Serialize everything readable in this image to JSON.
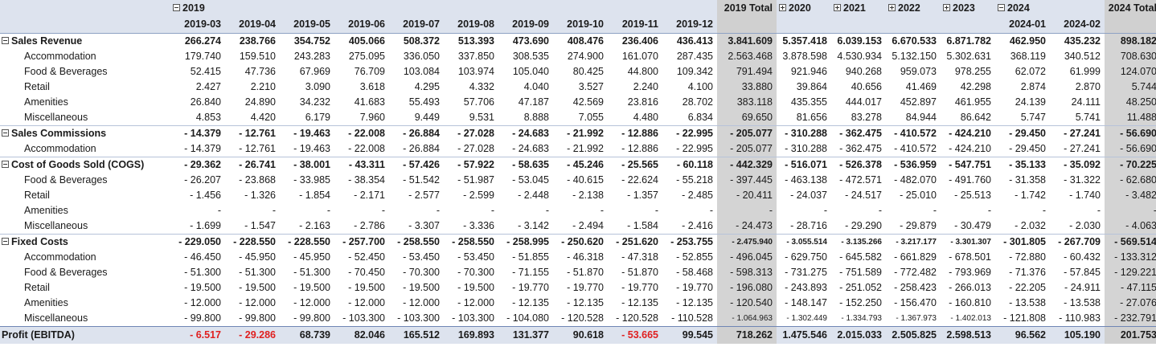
{
  "header": {
    "year_2019": "2019",
    "months_2019": [
      "2019-03",
      "2019-04",
      "2019-05",
      "2019-06",
      "2019-07",
      "2019-08",
      "2019-09",
      "2019-10",
      "2019-11",
      "2019-12"
    ],
    "total_2019": "2019 Total",
    "year_2020": "2020",
    "year_2021": "2021",
    "year_2022": "2022",
    "year_2023": "2023",
    "year_2024": "2024",
    "months_2024": [
      "2024-01",
      "2024-02"
    ],
    "total_2024": "2024 Total"
  },
  "rows": [
    {
      "label": "Sales Revenue",
      "cells": [
        "266.274",
        "238.766",
        "354.752",
        "405.066",
        "508.372",
        "513.393",
        "473.690",
        "408.476",
        "236.406",
        "436.413",
        "3.841.609",
        "5.357.418",
        "6.039.153",
        "6.670.533",
        "6.871.782",
        "462.950",
        "435.232",
        "898.182"
      ]
    },
    {
      "label": "Accommodation",
      "cells": [
        "179.740",
        "159.510",
        "243.283",
        "275.095",
        "336.050",
        "337.850",
        "308.535",
        "274.900",
        "161.070",
        "287.435",
        "2.563.468",
        "3.878.598",
        "4.530.934",
        "5.132.150",
        "5.302.631",
        "368.119",
        "340.512",
        "708.630"
      ]
    },
    {
      "label": "Food & Beverages",
      "cells": [
        "52.415",
        "47.736",
        "67.969",
        "76.709",
        "103.084",
        "103.974",
        "105.040",
        "80.425",
        "44.800",
        "109.342",
        "791.494",
        "921.946",
        "940.268",
        "959.073",
        "978.255",
        "62.072",
        "61.999",
        "124.070"
      ]
    },
    {
      "label": "Retail",
      "cells": [
        "2.427",
        "2.210",
        "3.090",
        "3.618",
        "4.295",
        "4.332",
        "4.040",
        "3.527",
        "2.240",
        "4.100",
        "33.880",
        "39.864",
        "40.656",
        "41.469",
        "42.298",
        "2.874",
        "2.870",
        "5.744"
      ]
    },
    {
      "label": "Amenities",
      "cells": [
        "26.840",
        "24.890",
        "34.232",
        "41.683",
        "55.493",
        "57.706",
        "47.187",
        "42.569",
        "23.816",
        "28.702",
        "383.118",
        "435.355",
        "444.017",
        "452.897",
        "461.955",
        "24.139",
        "24.111",
        "48.250"
      ]
    },
    {
      "label": "Miscellaneous",
      "cells": [
        "4.853",
        "4.420",
        "6.179",
        "7.960",
        "9.449",
        "9.531",
        "8.888",
        "7.055",
        "4.480",
        "6.834",
        "69.650",
        "81.656",
        "83.278",
        "84.944",
        "86.642",
        "5.747",
        "5.741",
        "11.488"
      ]
    },
    {
      "label": "Sales Commissions",
      "cells": [
        "- 14.379",
        "- 12.761",
        "- 19.463",
        "- 22.008",
        "- 26.884",
        "- 27.028",
        "- 24.683",
        "- 21.992",
        "- 12.886",
        "- 22.995",
        "- 205.077",
        "- 310.288",
        "- 362.475",
        "- 410.572",
        "- 424.210",
        "- 29.450",
        "- 27.241",
        "- 56.690"
      ]
    },
    {
      "label": "Accommodation",
      "cells": [
        "- 14.379",
        "- 12.761",
        "- 19.463",
        "- 22.008",
        "- 26.884",
        "- 27.028",
        "- 24.683",
        "- 21.992",
        "- 12.886",
        "- 22.995",
        "- 205.077",
        "- 310.288",
        "- 362.475",
        "- 410.572",
        "- 424.210",
        "- 29.450",
        "- 27.241",
        "- 56.690"
      ]
    },
    {
      "label": "Cost of Goods Sold (COGS)",
      "cells": [
        "- 29.362",
        "- 26.741",
        "- 38.001",
        "- 43.311",
        "- 57.426",
        "- 57.922",
        "- 58.635",
        "- 45.246",
        "- 25.565",
        "- 60.118",
        "- 442.329",
        "- 516.071",
        "- 526.378",
        "- 536.959",
        "- 547.751",
        "- 35.133",
        "- 35.092",
        "- 70.225"
      ]
    },
    {
      "label": "Food & Beverages",
      "cells": [
        "- 26.207",
        "- 23.868",
        "- 33.985",
        "- 38.354",
        "- 51.542",
        "- 51.987",
        "- 53.045",
        "- 40.615",
        "- 22.624",
        "- 55.218",
        "- 397.445",
        "- 463.138",
        "- 472.571",
        "- 482.070",
        "- 491.760",
        "- 31.358",
        "- 31.322",
        "- 62.680"
      ]
    },
    {
      "label": "Retail",
      "cells": [
        "- 1.456",
        "- 1.326",
        "- 1.854",
        "- 2.171",
        "- 2.577",
        "- 2.599",
        "- 2.448",
        "- 2.138",
        "- 1.357",
        "- 2.485",
        "- 20.411",
        "- 24.037",
        "- 24.517",
        "- 25.010",
        "- 25.513",
        "- 1.742",
        "- 1.740",
        "- 3.482"
      ]
    },
    {
      "label": "Amenities",
      "cells": [
        "-",
        "-",
        "-",
        "-",
        "-",
        "-",
        "-",
        "-",
        "-",
        "-",
        "-",
        "-",
        "-",
        "-",
        "-",
        "-",
        "-",
        "-"
      ]
    },
    {
      "label": "Miscellaneous",
      "cells": [
        "- 1.699",
        "- 1.547",
        "- 2.163",
        "- 2.786",
        "- 3.307",
        "- 3.336",
        "- 3.142",
        "- 2.494",
        "- 1.584",
        "- 2.416",
        "- 24.473",
        "- 28.716",
        "- 29.290",
        "- 29.879",
        "- 30.479",
        "- 2.032",
        "- 2.030",
        "- 4.063"
      ]
    },
    {
      "label": "Fixed Costs",
      "cells": [
        "- 229.050",
        "- 228.550",
        "- 228.550",
        "- 257.700",
        "- 258.550",
        "- 258.550",
        "- 258.995",
        "- 250.620",
        "- 251.620",
        "- 253.755",
        "- 2.475.940",
        "- 3.055.514",
        "- 3.135.266",
        "- 3.217.177",
        "- 3.301.307",
        "- 301.805",
        "- 267.709",
        "- 569.514"
      ]
    },
    {
      "label": "Accommodation",
      "cells": [
        "- 46.450",
        "- 45.950",
        "- 45.950",
        "- 52.450",
        "- 53.450",
        "- 53.450",
        "- 51.855",
        "- 46.318",
        "- 47.318",
        "- 52.855",
        "- 496.045",
        "- 629.750",
        "- 645.582",
        "- 661.829",
        "- 678.501",
        "- 72.880",
        "- 60.432",
        "- 133.312"
      ]
    },
    {
      "label": "Food & Beverages",
      "cells": [
        "- 51.300",
        "- 51.300",
        "- 51.300",
        "- 70.450",
        "- 70.300",
        "- 70.300",
        "- 71.155",
        "- 51.870",
        "- 51.870",
        "- 58.468",
        "- 598.313",
        "- 731.275",
        "- 751.589",
        "- 772.482",
        "- 793.969",
        "- 71.376",
        "- 57.845",
        "- 129.221"
      ]
    },
    {
      "label": "Retail",
      "cells": [
        "- 19.500",
        "- 19.500",
        "- 19.500",
        "- 19.500",
        "- 19.500",
        "- 19.500",
        "- 19.770",
        "- 19.770",
        "- 19.770",
        "- 19.770",
        "- 196.080",
        "- 243.893",
        "- 251.052",
        "- 258.423",
        "- 266.013",
        "- 22.205",
        "- 24.911",
        "- 47.115"
      ]
    },
    {
      "label": "Amenities",
      "cells": [
        "- 12.000",
        "- 12.000",
        "- 12.000",
        "- 12.000",
        "- 12.000",
        "- 12.000",
        "- 12.135",
        "- 12.135",
        "- 12.135",
        "- 12.135",
        "- 120.540",
        "- 148.147",
        "- 152.250",
        "- 156.470",
        "- 160.810",
        "- 13.538",
        "- 13.538",
        "- 27.076"
      ]
    },
    {
      "label": "Miscellaneous",
      "cells": [
        "- 99.800",
        "- 99.800",
        "- 99.800",
        "- 103.300",
        "- 103.300",
        "- 103.300",
        "- 104.080",
        "- 120.528",
        "- 120.528",
        "- 110.528",
        "- 1.064.963",
        "- 1.302.449",
        "- 1.334.793",
        "- 1.367.973",
        "- 1.402.013",
        "- 121.808",
        "- 110.983",
        "- 232.791"
      ]
    },
    {
      "label": "Profit (EBITDA)",
      "cells": [
        "- 6.517",
        "- 29.286",
        "68.739",
        "82.046",
        "165.512",
        "169.893",
        "131.377",
        "90.618",
        "- 53.665",
        "99.545",
        "718.262",
        "1.475.546",
        "2.015.033",
        "2.505.825",
        "2.598.513",
        "96.562",
        "105.190",
        "201.753"
      ]
    }
  ],
  "colors": {
    "header_bg": "#dde3ee",
    "total_bg": "#d4d4d4",
    "negative_profit": "#e02020"
  },
  "icons": {
    "collapse": "minus-box-icon",
    "expand": "plus-box-icon"
  }
}
